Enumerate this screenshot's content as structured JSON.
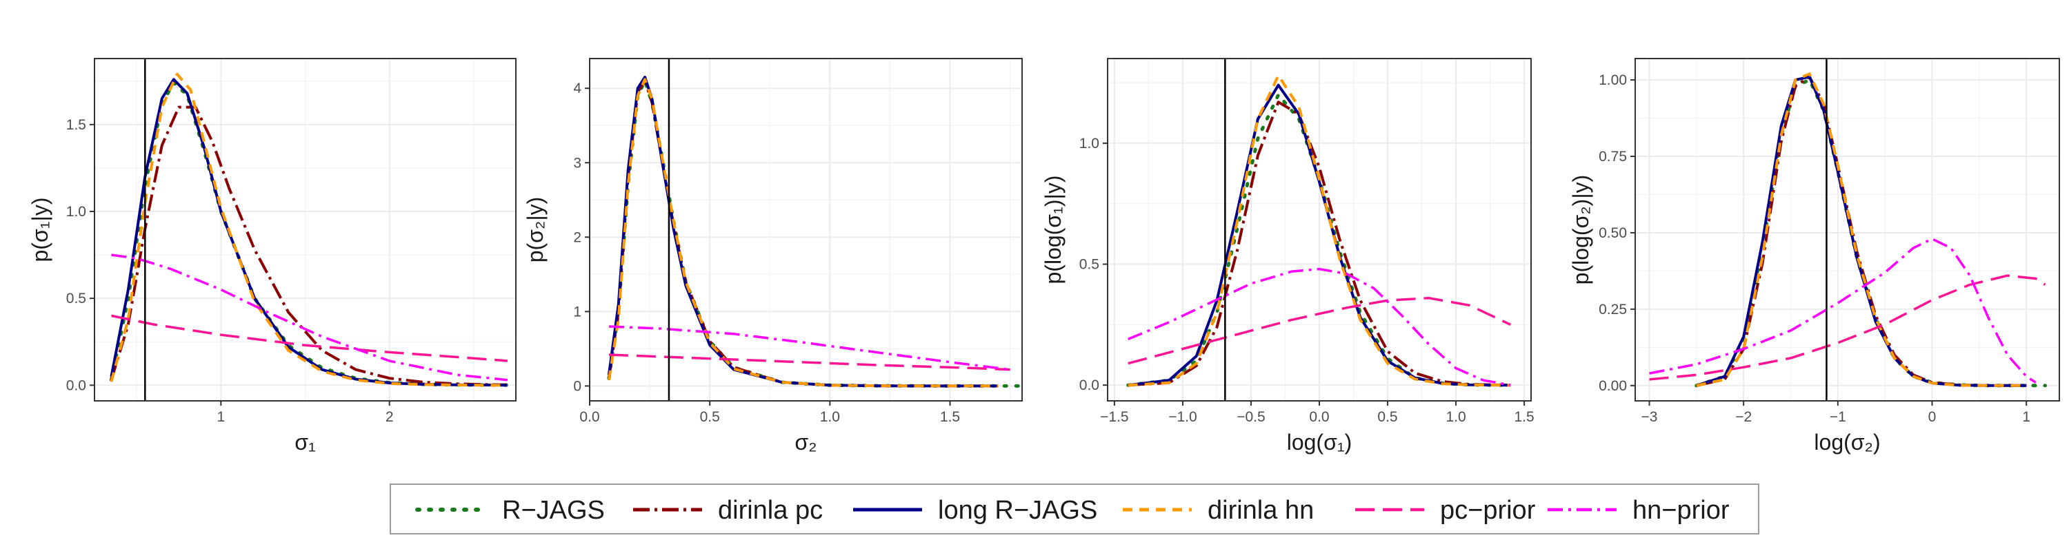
{
  "chart_data": [
    {
      "type": "line",
      "xlabel": "σ₁",
      "ylabel": "p(σ₁|y)",
      "xlim": [
        0.25,
        2.75
      ],
      "ylim": [
        -0.09,
        1.88
      ],
      "xticks": [
        1,
        2
      ],
      "xtick_labels": [
        "1",
        "2"
      ],
      "yticks": [
        0.0,
        0.5,
        1.0,
        1.5
      ],
      "ytick_labels": [
        "0.0",
        "0.5",
        "1.0",
        "1.5"
      ],
      "vline": 0.55,
      "grid": true,
      "series": [
        {
          "name": "R−JAGS",
          "x": [
            0.35,
            0.45,
            0.55,
            0.65,
            0.72,
            0.8,
            0.9,
            1.0,
            1.2,
            1.4,
            1.6,
            1.8,
            2.0,
            2.2,
            2.4,
            2.6,
            2.75
          ],
          "y": [
            0.03,
            0.5,
            1.15,
            1.62,
            1.74,
            1.67,
            1.35,
            1.0,
            0.5,
            0.23,
            0.1,
            0.04,
            0.015,
            0.005,
            0.002,
            0.001,
            0.0
          ]
        },
        {
          "name": "dirinla pc",
          "x": [
            0.35,
            0.45,
            0.55,
            0.65,
            0.75,
            0.85,
            0.95,
            1.05,
            1.2,
            1.4,
            1.6,
            1.8,
            2.0,
            2.2,
            2.4,
            2.6,
            2.7
          ],
          "y": [
            0.03,
            0.35,
            0.9,
            1.38,
            1.6,
            1.6,
            1.4,
            1.13,
            0.78,
            0.42,
            0.2,
            0.09,
            0.04,
            0.018,
            0.008,
            0.003,
            0.002
          ]
        },
        {
          "name": "long R−JAGS",
          "x": [
            0.35,
            0.45,
            0.55,
            0.65,
            0.72,
            0.8,
            0.9,
            1.0,
            1.2,
            1.4,
            1.6,
            1.8,
            2.0,
            2.2,
            2.4,
            2.6,
            2.7
          ],
          "y": [
            0.05,
            0.55,
            1.2,
            1.65,
            1.76,
            1.68,
            1.37,
            1.0,
            0.5,
            0.22,
            0.09,
            0.035,
            0.013,
            0.005,
            0.002,
            0.001,
            0.0
          ]
        },
        {
          "name": "dirinla hn",
          "x": [
            0.35,
            0.45,
            0.55,
            0.65,
            0.74,
            0.82,
            0.9,
            1.0,
            1.2,
            1.4,
            1.6,
            1.8,
            2.0,
            2.2,
            2.4,
            2.6,
            2.7
          ],
          "y": [
            0.02,
            0.38,
            1.05,
            1.6,
            1.79,
            1.7,
            1.4,
            1.02,
            0.48,
            0.2,
            0.08,
            0.03,
            0.01,
            0.004,
            0.001,
            0.0,
            0.0
          ]
        },
        {
          "name": "pc−prior",
          "x": [
            0.35,
            0.6,
            1.0,
            1.5,
            2.0,
            2.5,
            2.7
          ],
          "y": [
            0.4,
            0.35,
            0.29,
            0.23,
            0.19,
            0.155,
            0.14
          ]
        },
        {
          "name": "hn−prior",
          "x": [
            0.35,
            0.5,
            0.7,
            1.0,
            1.3,
            1.6,
            2.0,
            2.4,
            2.7
          ],
          "y": [
            0.75,
            0.73,
            0.67,
            0.55,
            0.41,
            0.28,
            0.14,
            0.06,
            0.03
          ]
        }
      ]
    },
    {
      "type": "line",
      "xlabel": "σ₂",
      "ylabel": "p(σ₂|y)",
      "xlim": [
        0.0,
        1.8
      ],
      "ylim": [
        -0.2,
        4.4
      ],
      "xticks": [
        0.0,
        0.5,
        1.0,
        1.5
      ],
      "xtick_labels": [
        "0.0",
        "0.5",
        "1.0",
        "1.5"
      ],
      "yticks": [
        0,
        1,
        2,
        3,
        4
      ],
      "ytick_labels": [
        "0",
        "1",
        "2",
        "3",
        "4"
      ],
      "vline": 0.33,
      "grid": true,
      "series": [
        {
          "name": "R−JAGS",
          "x": [
            0.08,
            0.12,
            0.16,
            0.2,
            0.23,
            0.26,
            0.3,
            0.35,
            0.4,
            0.5,
            0.6,
            0.8,
            1.0,
            1.2,
            1.5,
            1.8
          ],
          "y": [
            0.1,
            1.0,
            2.7,
            3.9,
            4.1,
            3.8,
            3.1,
            2.2,
            1.4,
            0.6,
            0.25,
            0.05,
            0.01,
            0.003,
            0.0,
            0.0
          ]
        },
        {
          "name": "dirinla pc",
          "x": [
            0.08,
            0.12,
            0.16,
            0.2,
            0.23,
            0.26,
            0.3,
            0.35,
            0.4,
            0.5,
            0.6,
            0.8,
            1.0,
            1.2,
            1.5,
            1.7
          ],
          "y": [
            0.1,
            1.0,
            2.8,
            3.95,
            4.1,
            3.8,
            3.05,
            2.15,
            1.4,
            0.6,
            0.25,
            0.05,
            0.01,
            0.003,
            0.0,
            0.0
          ]
        },
        {
          "name": "long R−JAGS",
          "x": [
            0.08,
            0.12,
            0.16,
            0.2,
            0.23,
            0.26,
            0.3,
            0.35,
            0.4,
            0.5,
            0.6,
            0.8,
            1.0,
            1.2,
            1.5,
            1.7
          ],
          "y": [
            0.15,
            1.1,
            2.9,
            4.0,
            4.15,
            3.85,
            3.05,
            2.1,
            1.35,
            0.55,
            0.22,
            0.05,
            0.01,
            0.002,
            0.0,
            0.0
          ]
        },
        {
          "name": "dirinla hn",
          "x": [
            0.08,
            0.12,
            0.16,
            0.2,
            0.23,
            0.26,
            0.3,
            0.35,
            0.4,
            0.5,
            0.6,
            0.8,
            1.0,
            1.2,
            1.5,
            1.7
          ],
          "y": [
            0.08,
            0.9,
            2.7,
            3.9,
            4.12,
            3.85,
            3.1,
            2.2,
            1.4,
            0.58,
            0.23,
            0.05,
            0.01,
            0.002,
            0.0,
            0.0
          ]
        },
        {
          "name": "pc−prior",
          "x": [
            0.08,
            0.4,
            0.8,
            1.2,
            1.6,
            1.75
          ],
          "y": [
            0.42,
            0.38,
            0.33,
            0.28,
            0.24,
            0.22
          ]
        },
        {
          "name": "hn−prior",
          "x": [
            0.08,
            0.3,
            0.6,
            0.9,
            1.2,
            1.5,
            1.75
          ],
          "y": [
            0.8,
            0.77,
            0.7,
            0.58,
            0.45,
            0.32,
            0.22
          ]
        }
      ]
    },
    {
      "type": "line",
      "xlabel": "log(σ₁)",
      "ylabel": "p(log(σ₁)|y)",
      "xlim": [
        -1.55,
        1.55
      ],
      "ylim": [
        -0.065,
        1.35
      ],
      "xticks": [
        -1.5,
        -1.0,
        -0.5,
        0.0,
        0.5,
        1.0,
        1.5
      ],
      "xtick_labels": [
        "−1.5",
        "−1.0",
        "−0.5",
        "0.0",
        "0.5",
        "1.0",
        "1.5"
      ],
      "yticks": [
        0.0,
        0.5,
        1.0
      ],
      "ytick_labels": [
        "0.0",
        "0.5",
        "1.0"
      ],
      "vline": -0.69,
      "grid": true,
      "series": [
        {
          "name": "R−JAGS",
          "x": [
            -1.4,
            -1.1,
            -0.9,
            -0.75,
            -0.6,
            -0.45,
            -0.3,
            -0.15,
            0.0,
            0.15,
            0.3,
            0.5,
            0.7,
            0.9,
            1.1,
            1.4
          ],
          "y": [
            0.0,
            0.02,
            0.1,
            0.3,
            0.65,
            1.02,
            1.2,
            1.1,
            0.85,
            0.55,
            0.3,
            0.11,
            0.03,
            0.008,
            0.001,
            0.0
          ]
        },
        {
          "name": "dirinla pc",
          "x": [
            -1.4,
            -1.1,
            -0.9,
            -0.75,
            -0.6,
            -0.45,
            -0.3,
            -0.15,
            0.0,
            0.15,
            0.3,
            0.5,
            0.7,
            0.9,
            1.1,
            1.4
          ],
          "y": [
            0.0,
            0.01,
            0.08,
            0.24,
            0.56,
            0.95,
            1.17,
            1.12,
            0.9,
            0.6,
            0.35,
            0.14,
            0.05,
            0.015,
            0.003,
            0.0
          ]
        },
        {
          "name": "long R−JAGS",
          "x": [
            -1.4,
            -1.1,
            -0.9,
            -0.75,
            -0.6,
            -0.45,
            -0.3,
            -0.15,
            0.0,
            0.15,
            0.3,
            0.5,
            0.7,
            0.9,
            1.1,
            1.4
          ],
          "y": [
            0.0,
            0.02,
            0.12,
            0.35,
            0.72,
            1.1,
            1.24,
            1.12,
            0.84,
            0.53,
            0.28,
            0.1,
            0.03,
            0.007,
            0.001,
            0.0
          ]
        },
        {
          "name": "dirinla hn",
          "x": [
            -1.4,
            -1.1,
            -0.9,
            -0.75,
            -0.6,
            -0.45,
            -0.3,
            -0.15,
            0.0,
            0.15,
            0.3,
            0.5,
            0.7,
            0.9,
            1.1,
            1.4
          ],
          "y": [
            0.0,
            0.01,
            0.09,
            0.3,
            0.68,
            1.1,
            1.28,
            1.15,
            0.85,
            0.52,
            0.27,
            0.09,
            0.025,
            0.006,
            0.001,
            0.0
          ]
        },
        {
          "name": "pc−prior",
          "x": [
            -1.4,
            -1.0,
            -0.6,
            -0.2,
            0.2,
            0.5,
            0.8,
            1.1,
            1.4
          ],
          "y": [
            0.09,
            0.15,
            0.21,
            0.27,
            0.32,
            0.35,
            0.36,
            0.33,
            0.25
          ]
        },
        {
          "name": "hn−prior",
          "x": [
            -1.4,
            -1.1,
            -0.8,
            -0.5,
            -0.2,
            0.0,
            0.2,
            0.4,
            0.6,
            0.8,
            1.0,
            1.2,
            1.4
          ],
          "y": [
            0.19,
            0.26,
            0.34,
            0.42,
            0.47,
            0.48,
            0.46,
            0.4,
            0.29,
            0.17,
            0.07,
            0.02,
            0.0
          ]
        }
      ]
    },
    {
      "type": "line",
      "xlabel": "log(σ₂)",
      "ylabel": "p(log(σ₂)|y)",
      "xlim": [
        -3.15,
        1.35
      ],
      "ylim": [
        -0.05,
        1.07
      ],
      "xticks": [
        -3,
        -2,
        -1,
        0,
        1
      ],
      "xtick_labels": [
        "−3",
        "−2",
        "−1",
        "0",
        "1"
      ],
      "yticks": [
        0.0,
        0.25,
        0.5,
        0.75,
        1.0
      ],
      "ytick_labels": [
        "0.00",
        "0.25",
        "0.50",
        "0.75",
        "1.00"
      ],
      "vline": -1.12,
      "grid": true,
      "series": [
        {
          "name": "R−JAGS",
          "x": [
            -2.5,
            -2.2,
            -2.0,
            -1.8,
            -1.6,
            -1.45,
            -1.3,
            -1.15,
            -1.0,
            -0.8,
            -0.6,
            -0.4,
            -0.2,
            0.0,
            0.3,
            0.6,
            1.0,
            1.2
          ],
          "y": [
            0.0,
            0.03,
            0.15,
            0.45,
            0.82,
            0.98,
            1.0,
            0.9,
            0.7,
            0.42,
            0.22,
            0.09,
            0.03,
            0.01,
            0.002,
            0.0,
            0.0,
            0.0
          ]
        },
        {
          "name": "dirinla pc",
          "x": [
            -2.5,
            -2.2,
            -2.0,
            -1.8,
            -1.6,
            -1.45,
            -1.3,
            -1.15,
            -1.0,
            -0.8,
            -0.6,
            -0.4,
            -0.2,
            0.0,
            0.3,
            0.6,
            1.0
          ],
          "y": [
            0.0,
            0.02,
            0.12,
            0.4,
            0.8,
            0.98,
            1.01,
            0.92,
            0.72,
            0.44,
            0.23,
            0.1,
            0.035,
            0.01,
            0.002,
            0.0,
            0.0
          ]
        },
        {
          "name": "long R−JAGS",
          "x": [
            -2.5,
            -2.2,
            -2.0,
            -1.8,
            -1.6,
            -1.45,
            -1.3,
            -1.15,
            -1.0,
            -0.8,
            -0.6,
            -0.4,
            -0.2,
            0.0,
            0.3,
            0.6,
            1.0
          ],
          "y": [
            0.0,
            0.03,
            0.16,
            0.47,
            0.85,
            1.0,
            1.01,
            0.9,
            0.7,
            0.42,
            0.21,
            0.09,
            0.03,
            0.008,
            0.001,
            0.0,
            0.0
          ]
        },
        {
          "name": "dirinla hn",
          "x": [
            -2.5,
            -2.2,
            -2.0,
            -1.8,
            -1.6,
            -1.45,
            -1.3,
            -1.15,
            -1.0,
            -0.8,
            -0.6,
            -0.4,
            -0.2,
            0.0,
            0.3,
            0.6,
            1.0
          ],
          "y": [
            0.0,
            0.02,
            0.12,
            0.42,
            0.82,
            1.0,
            1.02,
            0.92,
            0.72,
            0.43,
            0.22,
            0.09,
            0.03,
            0.008,
            0.001,
            0.0,
            0.0
          ]
        },
        {
          "name": "pc−prior",
          "x": [
            -3.0,
            -2.5,
            -2.0,
            -1.5,
            -1.0,
            -0.5,
            0.0,
            0.4,
            0.8,
            1.1,
            1.2
          ],
          "y": [
            0.02,
            0.035,
            0.06,
            0.09,
            0.14,
            0.2,
            0.28,
            0.33,
            0.36,
            0.35,
            0.33
          ]
        },
        {
          "name": "hn−prior",
          "x": [
            -3.0,
            -2.5,
            -2.0,
            -1.5,
            -1.0,
            -0.5,
            -0.2,
            0.0,
            0.2,
            0.4,
            0.6,
            0.8,
            1.0,
            1.1
          ],
          "y": [
            0.04,
            0.07,
            0.12,
            0.18,
            0.27,
            0.37,
            0.45,
            0.48,
            0.45,
            0.36,
            0.22,
            0.1,
            0.03,
            0.01
          ]
        }
      ]
    }
  ],
  "legend": {
    "items": [
      {
        "label": "R−JAGS",
        "color": "#1b7a1b",
        "dash": "3,14",
        "width": 6,
        "linecap": "round"
      },
      {
        "label": "dirinla pc",
        "color": "#8b0000",
        "dash": "24,7,4,7",
        "width": 5,
        "linecap": "butt"
      },
      {
        "label": "long R−JAGS",
        "color": "#00008b",
        "dash": "",
        "width": 5,
        "linecap": "butt"
      },
      {
        "label": "dirinla hn",
        "color": "#ff9900",
        "dash": "14,10",
        "width": 5,
        "linecap": "butt"
      },
      {
        "label": "pc−prior",
        "color": "#ff1493",
        "dash": "28,12",
        "width": 4.5,
        "linecap": "butt"
      },
      {
        "label": "hn−prior",
        "color": "#ff00ff",
        "dash": "22,8,4,8",
        "width": 4.5,
        "linecap": "butt"
      }
    ]
  }
}
